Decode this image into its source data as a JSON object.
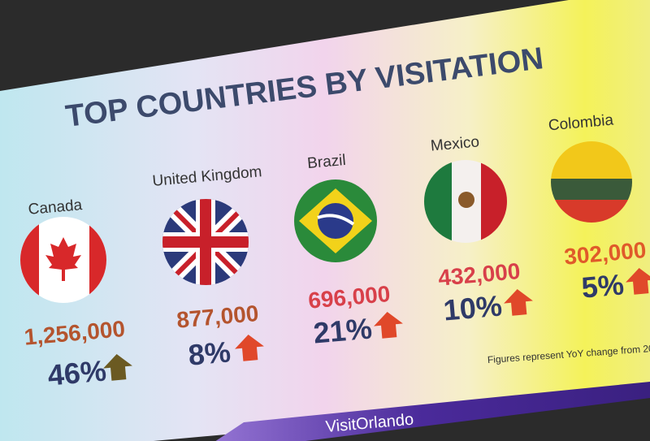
{
  "title": "TOP COUNTRIES BY VISITATION",
  "countries": [
    {
      "name": "Canada",
      "visitors": "1,256,000",
      "change": "46%"
    },
    {
      "name": "United Kingdom",
      "visitors": "877,000",
      "change": "8%"
    },
    {
      "name": "Brazil",
      "visitors": "696,000",
      "change": "21%"
    },
    {
      "name": "Mexico",
      "visitors": "432,000",
      "change": "10%"
    },
    {
      "name": "Colombia",
      "visitors": "302,000",
      "change": "5%"
    }
  ],
  "footnote": "Figures represent YoY change from 20",
  "logo": "VisitOrlando"
}
